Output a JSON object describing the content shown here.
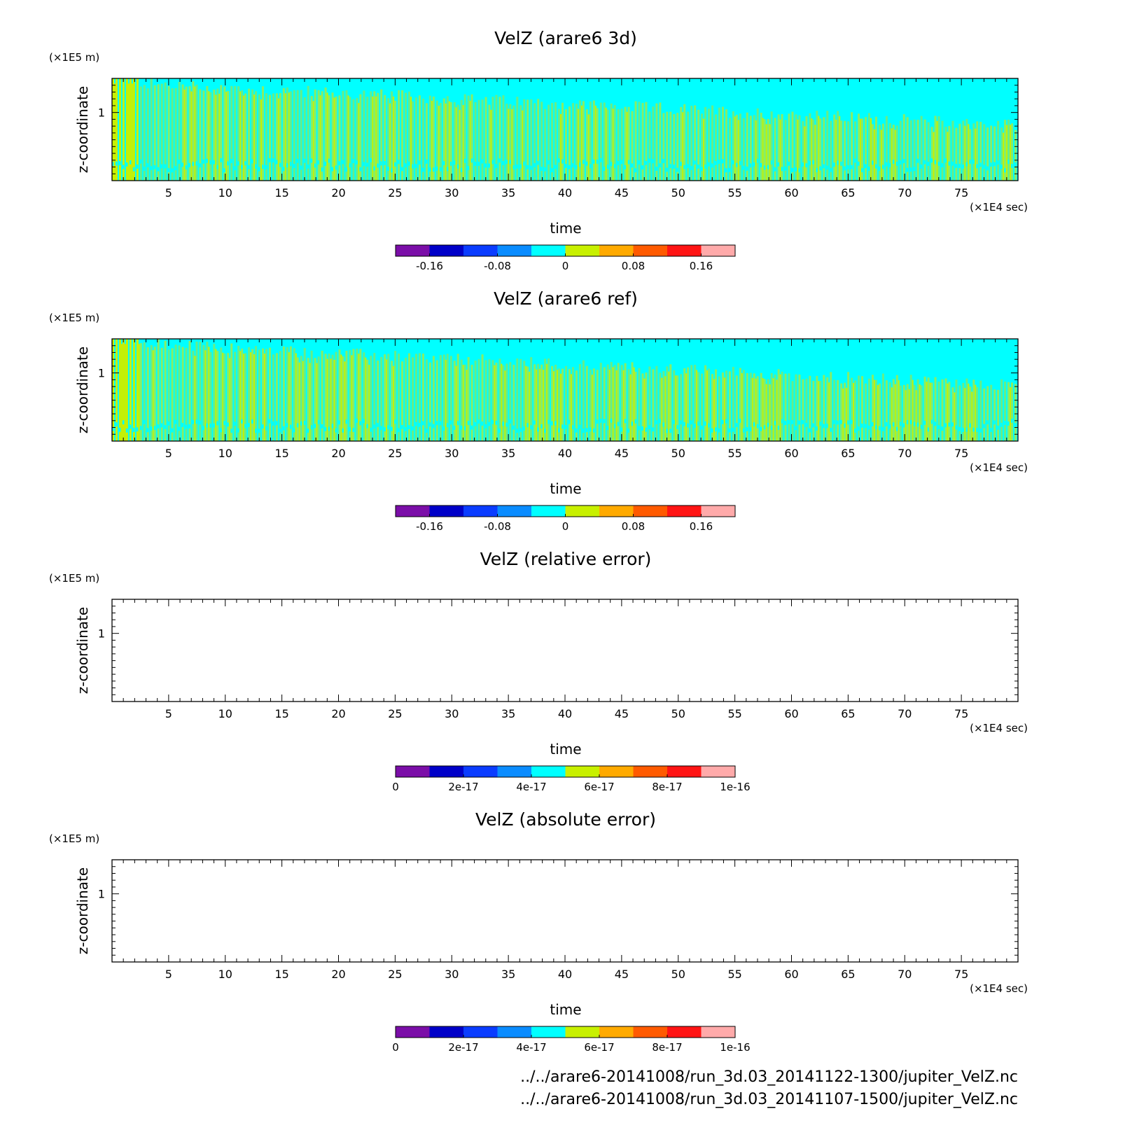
{
  "chart_data": [
    {
      "type": "heatmap",
      "title": "VelZ (arare6 3d)",
      "xlabel": "time",
      "ylabel": "z-coordinate",
      "x_unit": "(×1E4 sec)",
      "y_unit": "(×1E5 m)",
      "xlim": [
        0,
        80
      ],
      "ylim": [
        0,
        1.5
      ],
      "x_ticks": [
        5,
        10,
        15,
        20,
        25,
        30,
        35,
        40,
        45,
        50,
        55,
        60,
        65,
        70,
        75
      ],
      "y_ticks": [
        1
      ],
      "field_pattern": "oscillating",
      "colorbar": {
        "min": -0.2,
        "max": 0.2,
        "colors": [
          "#7b0ea8",
          "#0000c8",
          "#0a3cff",
          "#0a8cff",
          "#00ffff",
          "#c8f000",
          "#ffaa00",
          "#ff5a00",
          "#ff1414",
          "#ffaaaa"
        ],
        "tick_values": [
          -0.16,
          -0.08,
          0,
          0.08,
          0.16
        ],
        "tick_labels": [
          "-0.16",
          "-0.08",
          "0",
          "0.08",
          "0.16"
        ]
      }
    },
    {
      "type": "heatmap",
      "title": "VelZ (arare6 ref)",
      "xlabel": "time",
      "ylabel": "z-coordinate",
      "x_unit": "(×1E4 sec)",
      "y_unit": "(×1E5 m)",
      "xlim": [
        0,
        80
      ],
      "ylim": [
        0,
        1.5
      ],
      "x_ticks": [
        5,
        10,
        15,
        20,
        25,
        30,
        35,
        40,
        45,
        50,
        55,
        60,
        65,
        70,
        75
      ],
      "y_ticks": [
        1
      ],
      "field_pattern": "oscillating",
      "colorbar": {
        "min": -0.2,
        "max": 0.2,
        "colors": [
          "#7b0ea8",
          "#0000c8",
          "#0a3cff",
          "#0a8cff",
          "#00ffff",
          "#c8f000",
          "#ffaa00",
          "#ff5a00",
          "#ff1414",
          "#ffaaaa"
        ],
        "tick_values": [
          -0.16,
          -0.08,
          0,
          0.08,
          0.16
        ],
        "tick_labels": [
          "-0.16",
          "-0.08",
          "0",
          "0.08",
          "0.16"
        ]
      }
    },
    {
      "type": "heatmap",
      "title": "VelZ (relative error)",
      "xlabel": "time",
      "ylabel": "z-coordinate",
      "x_unit": "(×1E4 sec)",
      "y_unit": "(×1E5 m)",
      "xlim": [
        0,
        80
      ],
      "ylim": [
        0,
        1.5
      ],
      "x_ticks": [
        5,
        10,
        15,
        20,
        25,
        30,
        35,
        40,
        45,
        50,
        55,
        60,
        65,
        70,
        75
      ],
      "y_ticks": [
        1
      ],
      "field_pattern": "empty",
      "colorbar": {
        "min": 0,
        "max": 1e-16,
        "colors": [
          "#7b0ea8",
          "#0000c8",
          "#0a3cff",
          "#0a8cff",
          "#00ffff",
          "#c8f000",
          "#ffaa00",
          "#ff5a00",
          "#ff1414",
          "#ffaaaa"
        ],
        "tick_values": [
          0,
          2e-17,
          4e-17,
          6e-17,
          8e-17,
          1e-16
        ],
        "tick_labels": [
          "0",
          "2e-17",
          "4e-17",
          "6e-17",
          "8e-17",
          "1e-16"
        ]
      }
    },
    {
      "type": "heatmap",
      "title": "VelZ (absolute error)",
      "xlabel": "time",
      "ylabel": "z-coordinate",
      "x_unit": "(×1E4 sec)",
      "y_unit": "(×1E5 m)",
      "xlim": [
        0,
        80
      ],
      "ylim": [
        0,
        1.5
      ],
      "x_ticks": [
        5,
        10,
        15,
        20,
        25,
        30,
        35,
        40,
        45,
        50,
        55,
        60,
        65,
        70,
        75
      ],
      "y_ticks": [
        1
      ],
      "field_pattern": "empty",
      "colorbar": {
        "min": 0,
        "max": 1e-16,
        "colors": [
          "#7b0ea8",
          "#0000c8",
          "#0a3cff",
          "#0a8cff",
          "#00ffff",
          "#c8f000",
          "#ffaa00",
          "#ff5a00",
          "#ff1414",
          "#ffaaaa"
        ],
        "tick_values": [
          0,
          2e-17,
          4e-17,
          6e-17,
          8e-17,
          1e-16
        ],
        "tick_labels": [
          "0",
          "2e-17",
          "4e-17",
          "6e-17",
          "8e-17",
          "1e-16"
        ]
      }
    }
  ],
  "footer": {
    "file1": "../../arare6-20141008/run_3d.03_20141122-1300/jupiter_VelZ.nc",
    "file2": "../../arare6-20141008/run_3d.03_20141107-1500/jupiter_VelZ.nc"
  }
}
